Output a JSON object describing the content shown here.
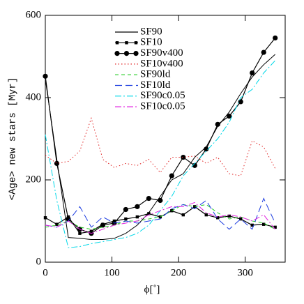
{
  "chart_data": {
    "type": "line",
    "x_label": "ϕ[˚]",
    "y_label": "<Age> new stars [Myr]",
    "x": [
      0,
      17.25,
      34.5,
      51.75,
      69,
      86.25,
      103.5,
      120.75,
      138,
      155.25,
      172.5,
      189.75,
      207,
      224.25,
      241.5,
      258.75,
      276,
      293.25,
      310.5,
      327.75,
      345
    ],
    "xlim": [
      0,
      360
    ],
    "xticks": [
      0,
      100,
      200,
      300
    ],
    "ylim": [
      0,
      600
    ],
    "yticks": [
      0,
      200,
      400,
      600
    ],
    "legend": "top",
    "series": [
      {
        "name": "SF90",
        "color": "#000000",
        "linestyle": "solid",
        "values": [
          445,
          250,
          60,
          58,
          55,
          55,
          58,
          70,
          90,
          120,
          160,
          200,
          215,
          255,
          280,
          330,
          365,
          410,
          450,
          480,
          505
        ]
      },
      {
        "name": "SF10",
        "color": "#000000",
        "linestyle": "solid",
        "marker": "square",
        "values": [
          108,
          92,
          110,
          70,
          75,
          92,
          100,
          105,
          110,
          118,
          110,
          125,
          115,
          135,
          115,
          108,
          112,
          105,
          90,
          92,
          85
        ]
      },
      {
        "name": "SF90v400",
        "color": "#000000",
        "linestyle": "solid",
        "marker": "circle",
        "values": [
          452,
          240,
          105,
          80,
          70,
          90,
          95,
          128,
          135,
          155,
          150,
          210,
          255,
          235,
          275,
          335,
          355,
          390,
          460,
          510,
          545
        ]
      },
      {
        "name": "SF10v400",
        "color": "#e02020",
        "linestyle": "dotted",
        "values": [
          260,
          240,
          245,
          270,
          350,
          250,
          230,
          240,
          235,
          250,
          218,
          255,
          255,
          258,
          240,
          255,
          215,
          210,
          295,
          280,
          228
        ]
      },
      {
        "name": "SF90ld",
        "color": "#22cc22",
        "linestyle": "dashed",
        "values": [
          85,
          90,
          100,
          85,
          80,
          85,
          90,
          100,
          100,
          105,
          110,
          125,
          140,
          135,
          140,
          120,
          105,
          110,
          100,
          95,
          80
        ]
      },
      {
        "name": "SF10ld",
        "color": "#1a3ae0",
        "linestyle": "longdash",
        "values": [
          90,
          85,
          100,
          135,
          85,
          110,
          95,
          100,
          95,
          100,
          105,
          130,
          140,
          130,
          150,
          105,
          80,
          105,
          80,
          155,
          95
        ]
      },
      {
        "name": "SF90c0.05",
        "color": "#00d8e8",
        "linestyle": "dashdot",
        "values": [
          310,
          150,
          35,
          38,
          45,
          50,
          55,
          60,
          70,
          90,
          125,
          160,
          210,
          240,
          270,
          300,
          340,
          400,
          420,
          460,
          490
        ]
      },
      {
        "name": "SF10c0.05",
        "color": "#e020e0",
        "linestyle": "dashdot",
        "values": [
          90,
          85,
          100,
          80,
          70,
          80,
          90,
          95,
          100,
          115,
          125,
          135,
          135,
          145,
          120,
          110,
          115,
          110,
          100,
          115,
          80
        ]
      }
    ]
  }
}
